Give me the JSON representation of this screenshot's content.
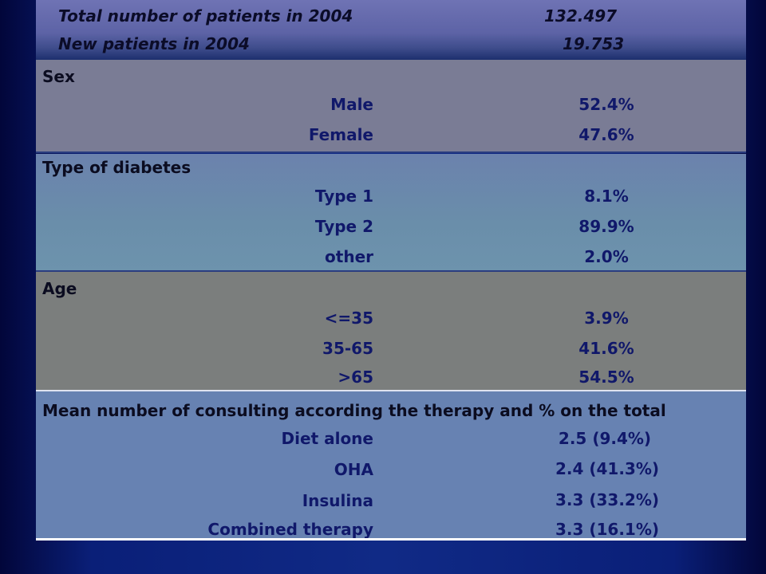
{
  "header": {
    "total_label": "Total number of patients in 2004",
    "total_value": "132.497",
    "new_label": "New patients in 2004",
    "new_value": "19.753"
  },
  "sections": {
    "sex": {
      "title": "Sex",
      "rows": [
        {
          "label": "Male",
          "value": "52.4%"
        },
        {
          "label": "Female",
          "value": "47.6%"
        }
      ]
    },
    "diabetes_type": {
      "title": "Type of diabetes",
      "rows": [
        {
          "label": "Type 1",
          "value": "8.1%"
        },
        {
          "label": "Type 2",
          "value": "89.9%"
        },
        {
          "label": "other",
          "value": "2.0%"
        }
      ]
    },
    "age": {
      "title": "Age",
      "rows": [
        {
          "label": "<=35",
          "value": "3.9%"
        },
        {
          "label": "35-65",
          "value": "41.6%"
        },
        {
          "label": ">65",
          "value": "54.5%"
        }
      ]
    },
    "therapy": {
      "title": "Mean number of consulting according the therapy and % on the total",
      "rows": [
        {
          "label": "Diet alone",
          "value": "2.5 (9.4%)"
        },
        {
          "label": "OHA",
          "value": "2.4 (41.3%)"
        },
        {
          "label": "Insulina",
          "value": "3.3 (33.2%)"
        },
        {
          "label": "Combined therapy",
          "value": "3.3 (16.1%)"
        }
      ]
    }
  }
}
